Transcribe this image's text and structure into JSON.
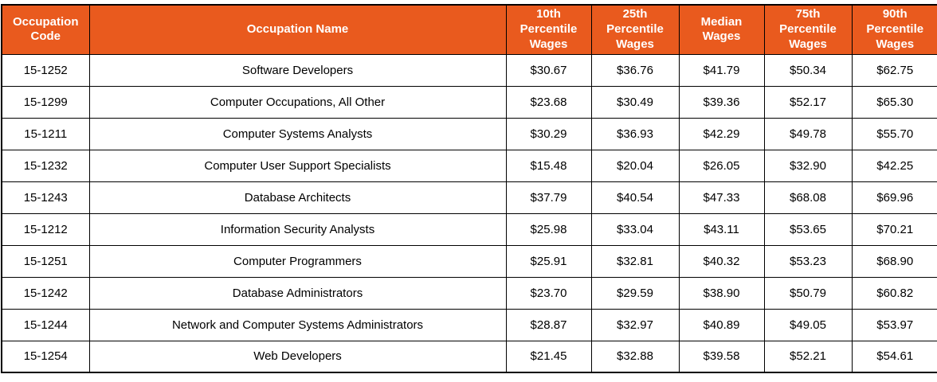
{
  "chart_data": {
    "type": "table",
    "title": "",
    "columns": [
      "Occupation Code",
      "Occupation Name",
      "10th Percentile Wages",
      "25th Percentile Wages",
      "Median Wages",
      "75th Percentile Wages",
      "90th Percentile Wages"
    ],
    "rows": [
      [
        "15-1252",
        "Software Developers",
        "$30.67",
        "$36.76",
        "$41.79",
        "$50.34",
        "$62.75"
      ],
      [
        "15-1299",
        "Computer Occupations, All Other",
        "$23.68",
        "$30.49",
        "$39.36",
        "$52.17",
        "$65.30"
      ],
      [
        "15-1211",
        "Computer Systems Analysts",
        "$30.29",
        "$36.93",
        "$42.29",
        "$49.78",
        "$55.70"
      ],
      [
        "15-1232",
        "Computer User Support Specialists",
        "$15.48",
        "$20.04",
        "$26.05",
        "$32.90",
        "$42.25"
      ],
      [
        "15-1243",
        "Database Architects",
        "$37.79",
        "$40.54",
        "$47.33",
        "$68.08",
        "$69.96"
      ],
      [
        "15-1212",
        "Information Security Analysts",
        "$25.98",
        "$33.04",
        "$43.11",
        "$53.65",
        "$70.21"
      ],
      [
        "15-1251",
        "Computer Programmers",
        "$25.91",
        "$32.81",
        "$40.32",
        "$53.23",
        "$68.90"
      ],
      [
        "15-1242",
        "Database Administrators",
        "$23.70",
        "$29.59",
        "$38.90",
        "$50.79",
        "$60.82"
      ],
      [
        "15-1244",
        "Network and Computer Systems Administrators",
        "$28.87",
        "$32.97",
        "$40.89",
        "$49.05",
        "$53.97"
      ],
      [
        "15-1254",
        "Web Developers",
        "$21.45",
        "$32.88",
        "$39.58",
        "$52.21",
        "$54.61"
      ]
    ],
    "colors": {
      "header_bg": "#E95A1E",
      "header_text": "#FFFFFF",
      "body_text": "#000000",
      "border": "#000000",
      "row_bg": "#FFFFFF"
    }
  }
}
